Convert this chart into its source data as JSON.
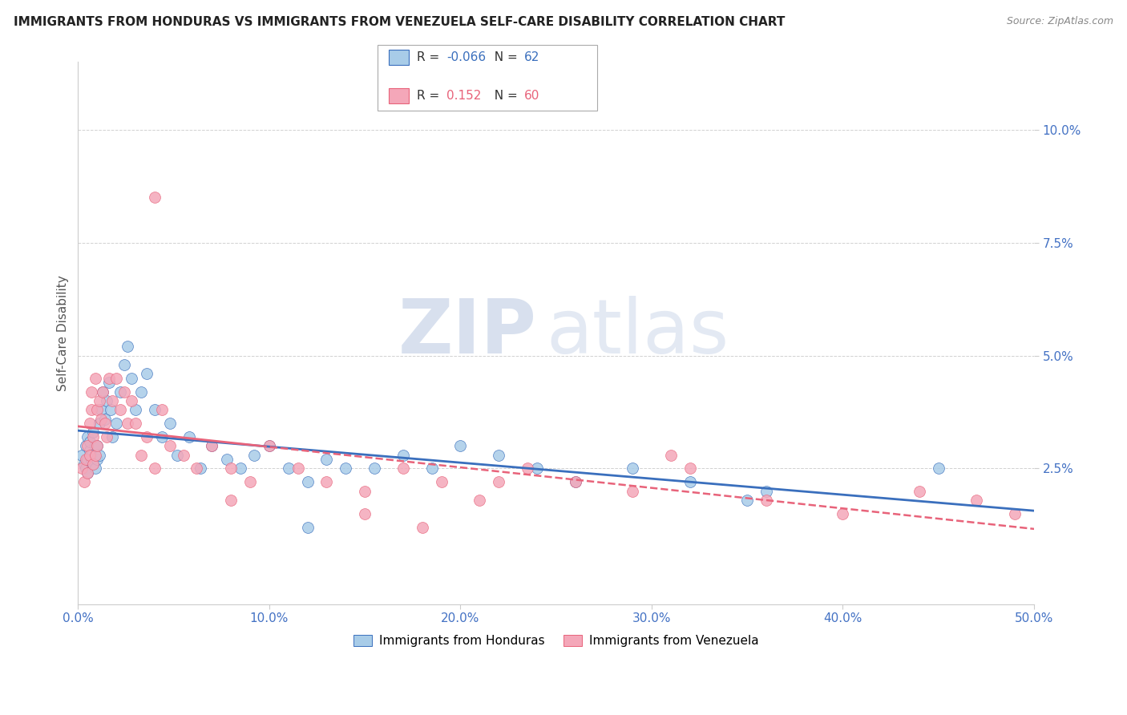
{
  "title": "IMMIGRANTS FROM HONDURAS VS IMMIGRANTS FROM VENEZUELA SELF-CARE DISABILITY CORRELATION CHART",
  "source": "Source: ZipAtlas.com",
  "ylabel": "Self-Care Disability",
  "xlim": [
    0,
    0.5
  ],
  "ylim": [
    -0.005,
    0.115
  ],
  "yticks": [
    0.025,
    0.05,
    0.075,
    0.1
  ],
  "ytick_labels": [
    "2.5%",
    "5.0%",
    "7.5%",
    "10.0%"
  ],
  "xticks": [
    0.0,
    0.1,
    0.2,
    0.3,
    0.4,
    0.5
  ],
  "xtick_labels": [
    "0.0%",
    "10.0%",
    "20.0%",
    "30.0%",
    "40.0%",
    "50.0%"
  ],
  "series1_color": "#a8cce8",
  "series2_color": "#f4a7b9",
  "trend1_color": "#3a6fbd",
  "trend2_color": "#e8637a",
  "R1": -0.066,
  "N1": 62,
  "R2": 0.152,
  "N2": 60,
  "legend1": "Immigrants from Honduras",
  "legend2": "Immigrants from Venezuela",
  "watermark_zip": "ZIP",
  "watermark_atlas": "atlas",
  "background_color": "#ffffff",
  "tick_color": "#4472C4",
  "honduras_x": [
    0.002,
    0.003,
    0.004,
    0.004,
    0.005,
    0.005,
    0.005,
    0.006,
    0.006,
    0.007,
    0.007,
    0.008,
    0.008,
    0.009,
    0.009,
    0.01,
    0.01,
    0.011,
    0.011,
    0.012,
    0.013,
    0.014,
    0.015,
    0.016,
    0.017,
    0.018,
    0.02,
    0.022,
    0.024,
    0.026,
    0.028,
    0.03,
    0.033,
    0.036,
    0.04,
    0.044,
    0.048,
    0.052,
    0.058,
    0.064,
    0.07,
    0.078,
    0.085,
    0.092,
    0.1,
    0.11,
    0.12,
    0.13,
    0.14,
    0.155,
    0.17,
    0.185,
    0.2,
    0.22,
    0.24,
    0.26,
    0.29,
    0.32,
    0.36,
    0.45,
    0.35,
    0.12
  ],
  "honduras_y": [
    0.028,
    0.026,
    0.03,
    0.025,
    0.027,
    0.032,
    0.024,
    0.029,
    0.031,
    0.027,
    0.028,
    0.033,
    0.026,
    0.03,
    0.025,
    0.03,
    0.027,
    0.028,
    0.035,
    0.038,
    0.042,
    0.036,
    0.04,
    0.044,
    0.038,
    0.032,
    0.035,
    0.042,
    0.048,
    0.052,
    0.045,
    0.038,
    0.042,
    0.046,
    0.038,
    0.032,
    0.035,
    0.028,
    0.032,
    0.025,
    0.03,
    0.027,
    0.025,
    0.028,
    0.03,
    0.025,
    0.022,
    0.027,
    0.025,
    0.025,
    0.028,
    0.025,
    0.03,
    0.028,
    0.025,
    0.022,
    0.025,
    0.022,
    0.02,
    0.025,
    0.018,
    0.012
  ],
  "venezuela_x": [
    0.002,
    0.003,
    0.004,
    0.005,
    0.005,
    0.006,
    0.006,
    0.007,
    0.007,
    0.008,
    0.008,
    0.009,
    0.009,
    0.01,
    0.01,
    0.011,
    0.012,
    0.013,
    0.014,
    0.015,
    0.016,
    0.018,
    0.02,
    0.022,
    0.024,
    0.026,
    0.028,
    0.03,
    0.033,
    0.036,
    0.04,
    0.044,
    0.048,
    0.055,
    0.062,
    0.07,
    0.08,
    0.09,
    0.1,
    0.115,
    0.13,
    0.15,
    0.17,
    0.19,
    0.21,
    0.235,
    0.26,
    0.29,
    0.32,
    0.36,
    0.4,
    0.44,
    0.47,
    0.49,
    0.31,
    0.22,
    0.15,
    0.08,
    0.04,
    0.18
  ],
  "venezuela_y": [
    0.025,
    0.022,
    0.027,
    0.03,
    0.024,
    0.035,
    0.028,
    0.042,
    0.038,
    0.032,
    0.026,
    0.045,
    0.028,
    0.038,
    0.03,
    0.04,
    0.036,
    0.042,
    0.035,
    0.032,
    0.045,
    0.04,
    0.045,
    0.038,
    0.042,
    0.035,
    0.04,
    0.035,
    0.028,
    0.032,
    0.025,
    0.038,
    0.03,
    0.028,
    0.025,
    0.03,
    0.025,
    0.022,
    0.03,
    0.025,
    0.022,
    0.02,
    0.025,
    0.022,
    0.018,
    0.025,
    0.022,
    0.02,
    0.025,
    0.018,
    0.015,
    0.02,
    0.018,
    0.015,
    0.028,
    0.022,
    0.015,
    0.018,
    0.085,
    0.012
  ]
}
